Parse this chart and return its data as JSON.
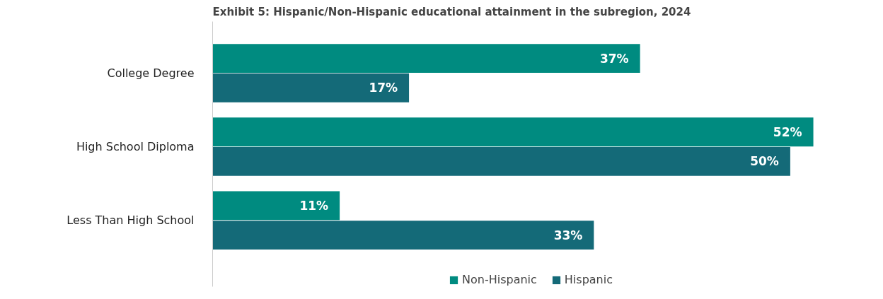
{
  "chart_data": {
    "type": "bar",
    "orientation": "horizontal",
    "title": "Exhibit 5: Hispanic/Non-Hispanic educational attainment in the subregion, 2024",
    "categories": [
      "College Degree",
      "High School Diploma",
      "Less Than High School"
    ],
    "series": [
      {
        "name": "Non-Hispanic",
        "color": "#008b80",
        "values": [
          37,
          52,
          11
        ],
        "value_labels": [
          "37%",
          "52%",
          "11%"
        ]
      },
      {
        "name": "Hispanic",
        "color": "#146a78",
        "values": [
          17,
          50,
          33
        ],
        "value_labels": [
          "17%",
          "50%",
          "33%"
        ]
      }
    ],
    "grid": false,
    "legend": "bottom"
  }
}
